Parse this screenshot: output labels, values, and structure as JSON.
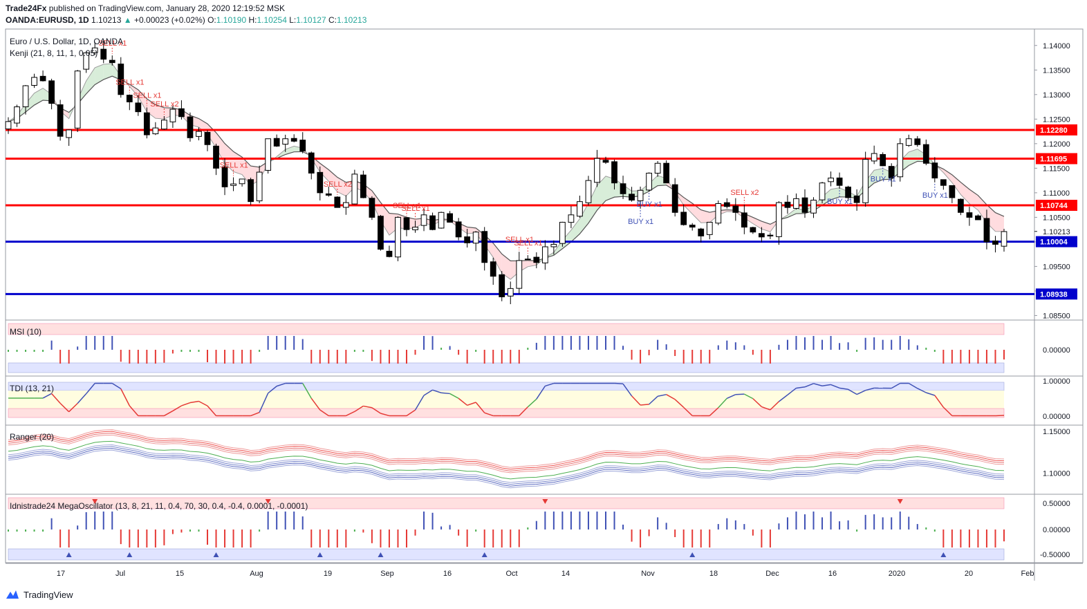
{
  "header": {
    "line1_publisher": "Trade24Fx",
    "line1_rest": " published on TradingView.com, January 28, 2020 12:19:52 MSK",
    "symbol": "OANDA:EURUSD, 1D",
    "last": "1.10213",
    "change": "+0.00023 (+0.02%)",
    "o_label": "O:",
    "o_value": "1.10190",
    "h_label": "H:",
    "h_value": "1.10254",
    "l_label": "L:",
    "l_value": "1.10127",
    "c_label": "C:",
    "c_value": "1.10213"
  },
  "footer": {
    "brand": "TradingView"
  },
  "colors": {
    "up_body": "#ffffff",
    "down_body": "#000000",
    "candle_outline": "#000000",
    "resistance": "#ff0000",
    "support": "#0000cc",
    "sell": "#e53935",
    "buy": "#3f51b5",
    "green": "#4caf50",
    "label_red_bg": "#ff0000",
    "label_blue_bg": "#0000cc",
    "last_price_bg": "#ffffff"
  },
  "chart_data": [
    {
      "type": "candlestick",
      "pane": "price",
      "title": "Euro / U.S. Dollar, 1D, OANDA",
      "indicator": "Kenji (21, 8, 11, 1, 0.05)",
      "x_tick_labels": [
        "17",
        "Jul",
        "15",
        "Aug",
        "19",
        "Sep",
        "16",
        "Oct",
        "14",
        "Nov",
        "18",
        "Dec",
        "16",
        "2020",
        "20",
        "Feb"
      ],
      "y_ticks": [
        "1.14000",
        "1.13500",
        "1.13000",
        "1.12500",
        "1.12000",
        "1.11500",
        "1.11000",
        "1.10500",
        "1.10000",
        "1.09500",
        "1.09000",
        "1.08500"
      ],
      "ylim": [
        1.0845,
        1.1425
      ],
      "last_price": "1.10213",
      "levels": [
        {
          "value": 1.1228,
          "label": "1.12280",
          "kind": "resistance"
        },
        {
          "value": 1.11695,
          "label": "1.11695",
          "kind": "resistance"
        },
        {
          "value": 1.10744,
          "label": "1.10744",
          "kind": "resistance"
        },
        {
          "value": 1.10004,
          "label": "1.10004",
          "kind": "support"
        },
        {
          "value": 1.08938,
          "label": "1.08938",
          "kind": "support"
        }
      ],
      "close_path": [
        1.1245,
        1.1275,
        1.1318,
        1.1335,
        1.1328,
        1.1282,
        1.1215,
        1.1228,
        1.1348,
        1.1385,
        1.1395,
        1.1372,
        1.1365,
        1.13,
        1.1285,
        1.1265,
        1.1218,
        1.1232,
        1.1248,
        1.127,
        1.1255,
        1.1212,
        1.1225,
        1.1198,
        1.115,
        1.1112,
        1.1118,
        1.1128,
        1.1082,
        1.1142,
        1.121,
        1.1195,
        1.121,
        1.1205,
        1.1185,
        1.114,
        1.11,
        1.1095,
        1.107,
        1.108,
        1.1138,
        1.109,
        1.105,
        1.0985,
        1.097,
        1.105,
        1.1025,
        1.103,
        1.1055,
        1.1025,
        1.106,
        1.104,
        1.101,
        1.0998,
        1.102,
        1.0958,
        1.093,
        1.0888,
        1.0905,
        1.0962,
        1.0965,
        1.0958,
        1.099,
        1.0995,
        1.104,
        1.1055,
        1.1082,
        1.1125,
        1.117,
        1.1162,
        1.112,
        1.1098,
        1.1085,
        1.1105,
        1.114,
        1.116,
        1.112,
        1.106,
        1.1035,
        1.103,
        1.1012,
        1.104,
        1.1078,
        1.1072,
        1.106,
        1.103,
        1.102,
        1.101,
        1.1012,
        1.108,
        1.107,
        1.1088,
        1.106,
        1.1085,
        1.112,
        1.113,
        1.1115,
        1.109,
        1.108,
        1.1168,
        1.118,
        1.1155,
        1.113,
        1.12,
        1.121,
        1.1198,
        1.116,
        1.113,
        1.1115,
        1.109,
        1.106,
        1.105,
        1.1045,
        1.1,
        1.0995,
        1.1021
      ],
      "signals": [
        {
          "i": 12,
          "text": "SELL x1",
          "kind": "sell"
        },
        {
          "i": 14,
          "text": "SELL x1",
          "kind": "sell"
        },
        {
          "i": 16,
          "text": "SELL x1",
          "kind": "sell"
        },
        {
          "i": 18,
          "text": "SELL x2",
          "kind": "sell"
        },
        {
          "i": 26,
          "text": "SELL x1",
          "kind": "sell"
        },
        {
          "i": 38,
          "text": "SELL x2",
          "kind": "sell"
        },
        {
          "i": 46,
          "text": "SELL x1",
          "kind": "sell"
        },
        {
          "i": 47,
          "text": "SELL x1",
          "kind": "sell"
        },
        {
          "i": 59,
          "text": "SELL x1",
          "kind": "sell"
        },
        {
          "i": 60,
          "text": "SELL x1",
          "kind": "sell"
        },
        {
          "i": 73,
          "text": "BUY x1",
          "kind": "buy"
        },
        {
          "i": 74,
          "text": "BUY x1",
          "kind": "buy"
        },
        {
          "i": 85,
          "text": "SELL x2",
          "kind": "sell"
        },
        {
          "i": 96,
          "text": "BUY x1",
          "kind": "buy"
        },
        {
          "i": 101,
          "text": "BUY x1",
          "kind": "buy"
        },
        {
          "i": 107,
          "text": "BUY x1",
          "kind": "buy"
        }
      ]
    },
    {
      "type": "bar",
      "pane": "msi",
      "title": "MSI (10)",
      "y_ticks": [
        "0.00000"
      ]
    },
    {
      "type": "line",
      "pane": "tdi",
      "title": "TDI (13, 21)",
      "y_ticks": [
        "1.00000",
        "0.00000"
      ]
    },
    {
      "type": "line",
      "pane": "ranger",
      "title": "Ranger (20)",
      "y_ticks": [
        "1.15000",
        "1.10000"
      ]
    },
    {
      "type": "bar",
      "pane": "oscillator",
      "title": "Idnistrade24 MegaOscillator (13, 8, 21, 11, 0.4, 70, 30, 0.4, -0.4, 0.0001, -0.0001)",
      "y_ticks": [
        "0.50000",
        "0.00000",
        "-0.50000"
      ]
    }
  ]
}
